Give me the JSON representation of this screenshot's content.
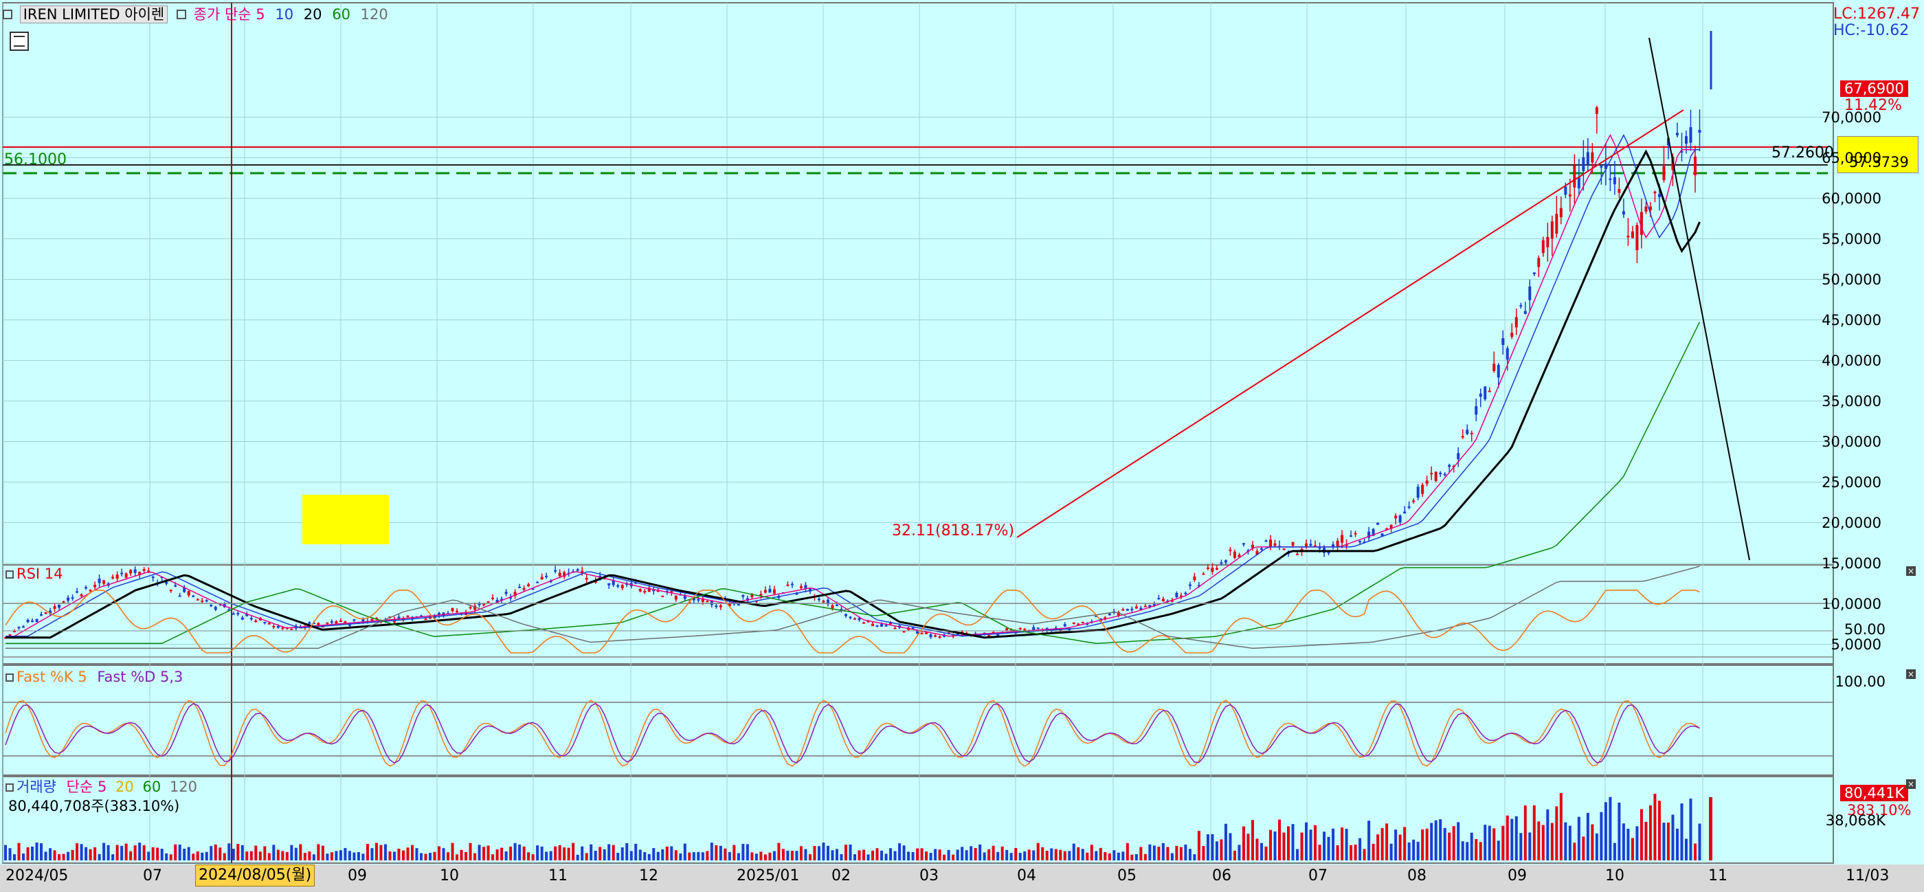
{
  "header": {
    "symbol": "IREN LIMITED",
    "symbol_kr": "아이렌",
    "ma_label": "종가 단순",
    "ma_periods": [
      "5",
      "10",
      "20",
      "60",
      "120"
    ],
    "ma_colors": [
      "#e60085",
      "#1f3fd1",
      "#000000",
      "#0a8a0a",
      "#6e6e6e"
    ]
  },
  "price_pane": {
    "lc": "LC:1267.47",
    "hc": "HC:-10.62",
    "last_price": "67,6900",
    "last_pct": "11.42%",
    "cursor_price": "57.2600",
    "cursor_tag": "57.3739",
    "hline_label": "56.1000",
    "low_annotation": "32.11(818.17%)",
    "y_ticks": [
      "70.0000",
      "65.0000",
      "60.0000",
      "55.0000",
      "50.0000",
      "45.0000",
      "40.0000",
      "35.0000",
      "30.0000",
      "25.0000",
      "20.0000",
      "15.0000",
      "10.0000",
      "5.0000"
    ]
  },
  "rsi_pane": {
    "title": "RSI 14",
    "tick": "50.00"
  },
  "stoch_pane": {
    "title_k": "Fast %K 5",
    "title_d": "Fast %D 5,3",
    "tick": "100.00"
  },
  "volume_pane": {
    "title": "거래량",
    "ma_label": "단순",
    "ma_periods": [
      "5",
      "20",
      "60",
      "120"
    ],
    "value": "80,440,708주(383.10%)",
    "tag_value": "80,441K",
    "tag_pct": "383.10%",
    "tick": "38,068K"
  },
  "x_axis": {
    "labels": [
      "2024/05",
      "07",
      "09",
      "10",
      "11",
      "12",
      "2025/01",
      "02",
      "03",
      "04",
      "05",
      "06",
      "07",
      "08",
      "09",
      "10",
      "11",
      "11/03"
    ],
    "cursor_date": "2024/08/05(월)"
  },
  "colors": {
    "bg": "#ccffff",
    "up": "#e60012",
    "down": "#1a3fd1",
    "grid": "#a8d8d8",
    "rsi": "#f07a1e",
    "rsi_fill": "#f4a07a",
    "yellow": "#ffff00"
  }
}
